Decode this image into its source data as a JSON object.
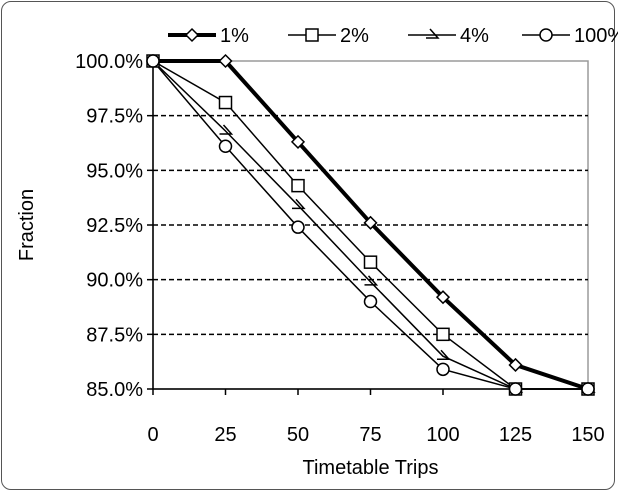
{
  "chart_data": {
    "type": "line",
    "title": "",
    "xlabel": "Timetable Trips",
    "ylabel": "Fraction",
    "x": [
      0,
      25,
      50,
      75,
      100,
      125,
      150
    ],
    "x_tick_labels": [
      "0",
      "25",
      "50",
      "75",
      "100",
      "125",
      "150"
    ],
    "xlim": [
      0,
      150
    ],
    "ylim": [
      85.0,
      100.0
    ],
    "y_ticks": [
      85.0,
      87.5,
      90.0,
      92.5,
      95.0,
      97.5,
      100.0
    ],
    "y_tick_labels": [
      "85.0%",
      "87.5%",
      "90.0%",
      "92.5%",
      "95.0%",
      "97.5%",
      "100.0%"
    ],
    "grid": "horizontal dashed",
    "legend_position": "top",
    "series": [
      {
        "name": "1%",
        "marker": "diamond",
        "bold": true,
        "values": [
          100.0,
          100.0,
          96.3,
          92.6,
          89.2,
          86.1,
          85.0
        ]
      },
      {
        "name": "2%",
        "marker": "square",
        "bold": false,
        "values": [
          100.0,
          98.1,
          94.3,
          90.8,
          87.5,
          85.0,
          85.0
        ]
      },
      {
        "name": "4%",
        "marker": "triangle",
        "bold": false,
        "values": [
          100.0,
          96.8,
          93.4,
          89.9,
          86.5,
          85.0,
          85.0
        ]
      },
      {
        "name": "100%",
        "marker": "circle",
        "bold": false,
        "values": [
          100.0,
          96.1,
          92.4,
          89.0,
          85.9,
          85.0,
          85.0
        ]
      }
    ]
  }
}
